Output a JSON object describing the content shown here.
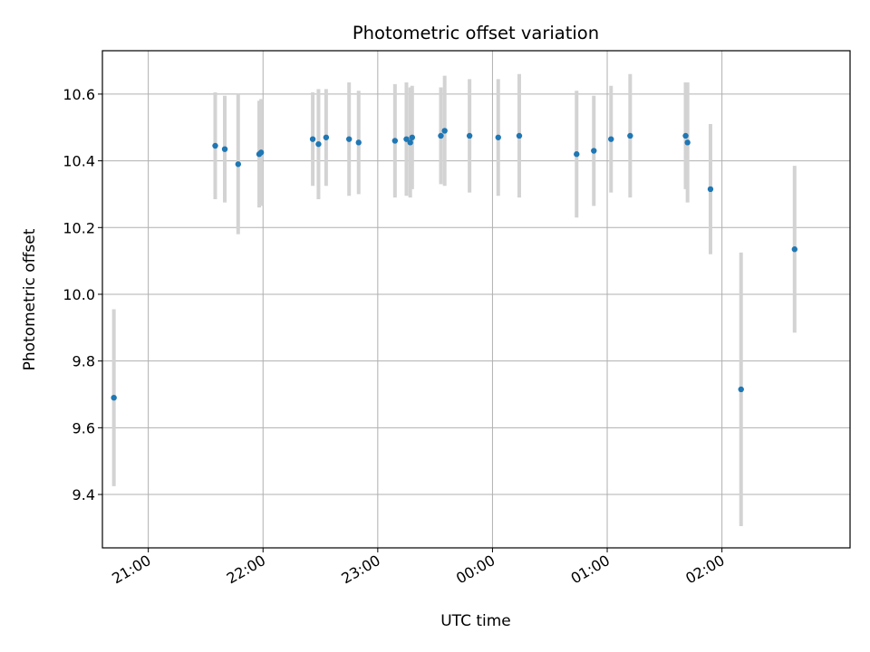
{
  "chart_data": {
    "type": "scatter",
    "title": "Photometric offset variation",
    "xlabel": "UTC time",
    "ylabel": "Photometric offset",
    "x_tick_labels": [
      "21:00",
      "22:00",
      "23:00",
      "00:00",
      "01:00",
      "02:00"
    ],
    "x_ticks": [
      "21:00",
      "22:00",
      "23:00",
      "24:00",
      "25:00",
      "26:00"
    ],
    "xlim": [
      "20:36",
      "27:07"
    ],
    "y_ticks": [
      9.4,
      9.6,
      9.8,
      10.0,
      10.2,
      10.4,
      10.6
    ],
    "y_tick_labels": [
      "9.4",
      "9.6",
      "9.8",
      "10.0",
      "10.2",
      "10.4",
      "10.6"
    ],
    "ylim": [
      9.24,
      10.73
    ],
    "grid": true,
    "marker_color": "#1f77b4",
    "errorbar_color": "#d3d3d3",
    "series": [
      {
        "points": [
          {
            "time": "20:42",
            "y": 9.69,
            "err": 0.265
          },
          {
            "time": "21:35",
            "y": 10.445,
            "err": 0.16
          },
          {
            "time": "21:40",
            "y": 10.435,
            "err": 0.16
          },
          {
            "time": "21:47",
            "y": 10.39,
            "err": 0.21
          },
          {
            "time": "21:58",
            "y": 10.42,
            "err": 0.16
          },
          {
            "time": "21:59",
            "y": 10.425,
            "err": 0.16
          },
          {
            "time": "22:26",
            "y": 10.465,
            "err": 0.14
          },
          {
            "time": "22:29",
            "y": 10.45,
            "err": 0.165
          },
          {
            "time": "22:33",
            "y": 10.47,
            "err": 0.145
          },
          {
            "time": "22:45",
            "y": 10.465,
            "err": 0.17
          },
          {
            "time": "22:50",
            "y": 10.455,
            "err": 0.155
          },
          {
            "time": "23:09",
            "y": 10.46,
            "err": 0.17
          },
          {
            "time": "23:15",
            "y": 10.465,
            "err": 0.17
          },
          {
            "time": "23:17",
            "y": 10.455,
            "err": 0.165
          },
          {
            "time": "23:18",
            "y": 10.47,
            "err": 0.155
          },
          {
            "time": "23:33",
            "y": 10.475,
            "err": 0.145
          },
          {
            "time": "23:35",
            "y": 10.49,
            "err": 0.165
          },
          {
            "time": "23:48",
            "y": 10.475,
            "err": 0.17
          },
          {
            "time": "24:03",
            "y": 10.47,
            "err": 0.175
          },
          {
            "time": "24:14",
            "y": 10.475,
            "err": 0.185
          },
          {
            "time": "24:44",
            "y": 10.42,
            "err": 0.19
          },
          {
            "time": "24:53",
            "y": 10.43,
            "err": 0.165
          },
          {
            "time": "25:02",
            "y": 10.465,
            "err": 0.16
          },
          {
            "time": "25:12",
            "y": 10.475,
            "err": 0.185
          },
          {
            "time": "25:41",
            "y": 10.475,
            "err": 0.16
          },
          {
            "time": "25:42",
            "y": 10.455,
            "err": 0.18
          },
          {
            "time": "25:54",
            "y": 10.315,
            "err": 0.195
          },
          {
            "time": "26:10",
            "y": 9.715,
            "err": 0.41
          },
          {
            "time": "26:38",
            "y": 10.135,
            "err": 0.25
          }
        ]
      }
    ]
  }
}
